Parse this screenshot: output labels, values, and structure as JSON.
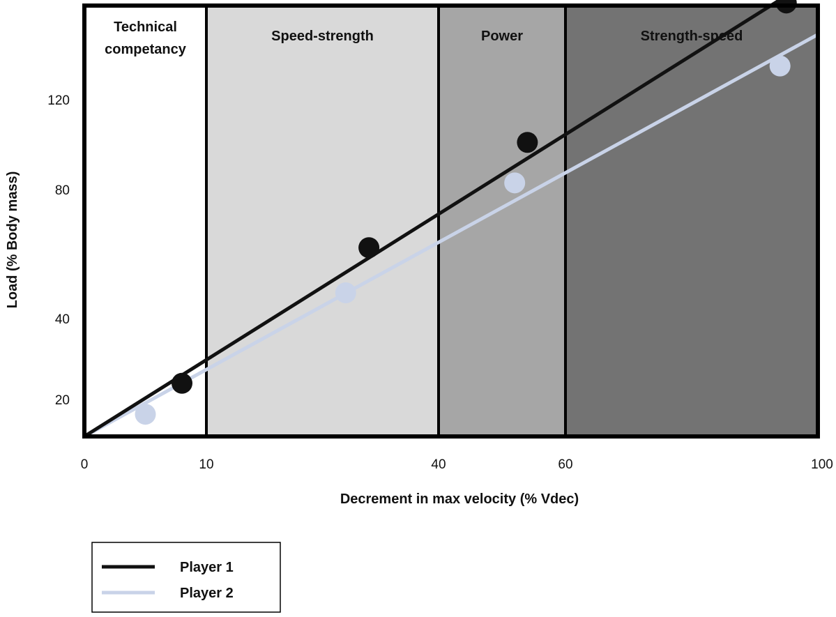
{
  "chart_data": {
    "type": "scatter",
    "xlabel": "Decrement in max velocity (% Vdec)",
    "ylabel": "Load (% Body mass)",
    "x_ticks": [
      0,
      10,
      40,
      60,
      100
    ],
    "y_ticks": [
      20,
      40,
      80,
      120
    ],
    "bands": [
      {
        "label": "Technical competancy",
        "x_start": 0,
        "x_end": 10,
        "color": "#ffffff"
      },
      {
        "label": "Speed-strength",
        "x_start": 10,
        "x_end": 40,
        "color": "#d9d9d9"
      },
      {
        "label": "Power",
        "x_start": 40,
        "x_end": 60,
        "color": "#a6a6a6"
      },
      {
        "label": "Strength-speed",
        "x_start": 60,
        "x_end": 100,
        "color": "#737373"
      }
    ],
    "series": [
      {
        "name": "Player 1",
        "color": "#111111",
        "points": [
          [
            8,
            24
          ],
          [
            31,
            62
          ],
          [
            54,
            101
          ],
          [
            95,
            163
          ]
        ],
        "line": [
          [
            0,
            0
          ],
          [
            100,
            175
          ]
        ]
      },
      {
        "name": "Player 2",
        "color": "#c9d3e8",
        "points": [
          [
            5,
            12
          ],
          [
            28,
            48
          ],
          [
            52,
            83
          ],
          [
            94,
            135
          ]
        ],
        "line": [
          [
            0,
            0
          ],
          [
            100,
            149
          ]
        ]
      }
    ],
    "legend_position": "bottom-left"
  }
}
